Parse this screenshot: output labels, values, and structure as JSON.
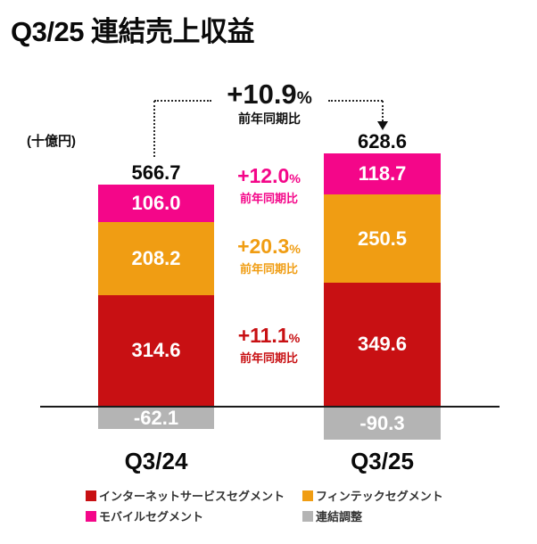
{
  "header": {
    "title": "Q3/25 連結売上収益"
  },
  "chart_data": {
    "type": "bar",
    "stacked": true,
    "title": "Q3/25 連結売上収益",
    "unit_label": "(十億円)",
    "categories": [
      "Q3/24",
      "Q3/25"
    ],
    "series": [
      {
        "name": "インターネットサービスセグメント",
        "color": "#c81013",
        "values": [
          314.6,
          349.6
        ],
        "labels": [
          "314.6",
          "349.6"
        ]
      },
      {
        "name": "フィンテックセグメント",
        "color": "#f09d13",
        "values": [
          208.2,
          250.5
        ],
        "labels": [
          "208.2",
          "250.5"
        ]
      },
      {
        "name": "モバイルセグメント",
        "color": "#f40689",
        "values": [
          106.0,
          118.7
        ],
        "labels": [
          "106.0",
          "118.7"
        ]
      },
      {
        "name": "連結調整",
        "color": "#b4b4b4",
        "values": [
          -62.1,
          -90.3
        ],
        "labels": [
          "-62.1",
          "-90.3"
        ]
      }
    ],
    "totals": [
      "566.7",
      "628.6"
    ],
    "annotations": {
      "total_growth": {
        "value": "+10.9",
        "percent_sign": "%",
        "sublabel": "前年同期比",
        "color": "#111111"
      },
      "mobile_growth": {
        "value": "+12.0",
        "percent_sign": "%",
        "sublabel": "前年同期比",
        "color": "#f40689"
      },
      "fintech_growth": {
        "value": "+20.3",
        "percent_sign": "%",
        "sublabel": "前年同期比",
        "color": "#f09d13"
      },
      "internet_growth": {
        "value": "+11.1",
        "percent_sign": "%",
        "sublabel": "前年同期比",
        "color": "#c81013"
      }
    },
    "legend_position": "bottom",
    "baseline": 0
  }
}
